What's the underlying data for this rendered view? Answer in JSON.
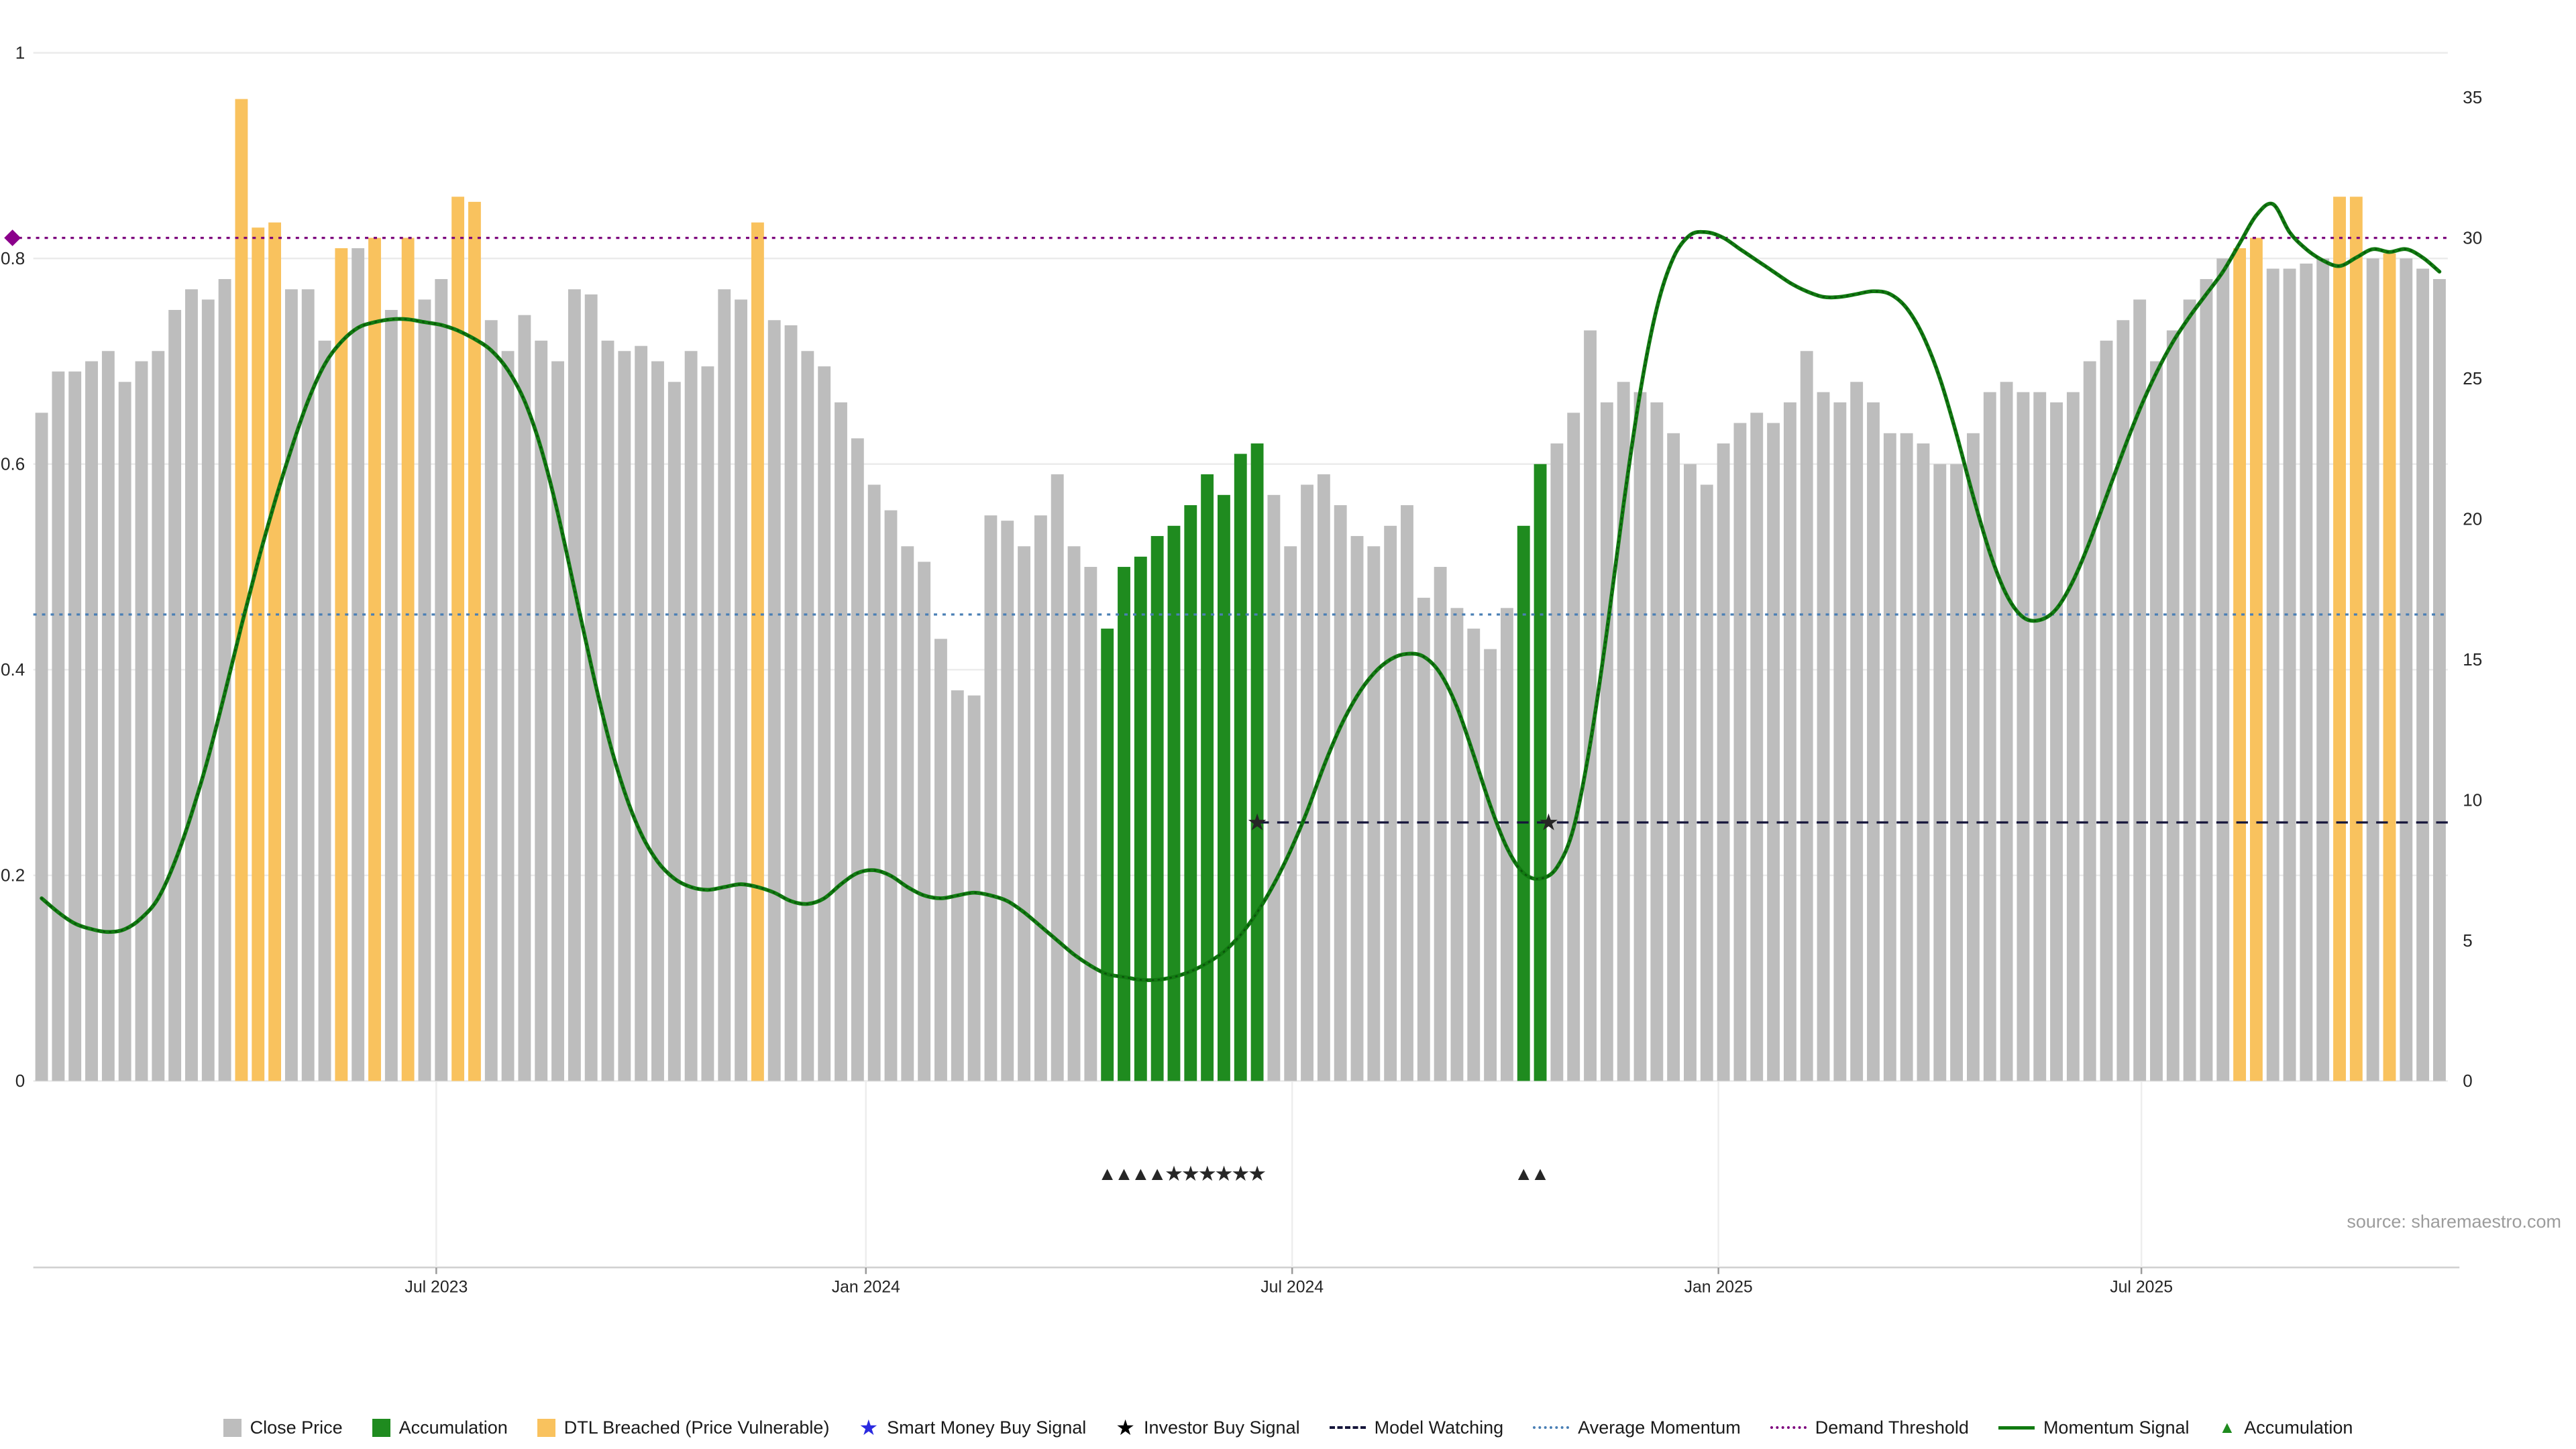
{
  "meta": {
    "source_text": "source: sharemaestro.com"
  },
  "colors": {
    "close_bar": "#bdbdbd",
    "accumulation_bar": "#1f8b1f",
    "dtl_bar": "#f9c25e",
    "momentum_line": "#117a11",
    "momentum_dots": "#0b520b",
    "average_momentum": "#4a7fb5",
    "demand_threshold": "#7d007d",
    "model_watching": "#15153a",
    "smart_money_star": "#2a2ae0",
    "investor_star": "#000000",
    "grid": "#ebebeb",
    "axis_line": "#cfcfcf",
    "tick_text": "#262626"
  },
  "chart_data": {
    "type": "bar+line",
    "title": "",
    "x_ticks": [
      {
        "label": "Jul 2023",
        "index": 23.7
      },
      {
        "label": "Jan 2024",
        "index": 49.5
      },
      {
        "label": "Jul 2024",
        "index": 75.1
      },
      {
        "label": "Jan 2025",
        "index": 100.7
      },
      {
        "label": "Jul 2025",
        "index": 126.1
      }
    ],
    "left_axis": {
      "range": [
        0,
        1
      ],
      "ticks": [
        {
          "v": 0,
          "label": "0"
        },
        {
          "v": 0.2,
          "label": "0.2"
        },
        {
          "v": 0.4,
          "label": "0.4"
        },
        {
          "v": 0.6,
          "label": "0.6"
        },
        {
          "v": 0.8,
          "label": "0.8"
        },
        {
          "v": 1,
          "label": "1"
        }
      ]
    },
    "right_axis": {
      "range": [
        0,
        35
      ],
      "ticks": [
        {
          "v": 0,
          "label": "0"
        },
        {
          "v": 5,
          "label": "5"
        },
        {
          "v": 10,
          "label": "10"
        },
        {
          "v": 15,
          "label": "15"
        },
        {
          "v": 20,
          "label": "20"
        },
        {
          "v": 25,
          "label": "25"
        },
        {
          "v": 30,
          "label": "30"
        },
        {
          "v": 35,
          "label": "35"
        }
      ]
    },
    "series": [
      {
        "name": "Close Price",
        "type": "bar",
        "axis": "left",
        "values": [
          0.65,
          0.69,
          0.69,
          0.7,
          0.71,
          0.68,
          0.7,
          0.71,
          0.75,
          0.77,
          0.76,
          0.78,
          0.955,
          0.83,
          0.835,
          0.77,
          0.77,
          0.72,
          0.81,
          0.81,
          0.82,
          0.75,
          0.82,
          0.76,
          0.78,
          0.86,
          0.855,
          0.74,
          0.71,
          0.745,
          0.72,
          0.7,
          0.77,
          0.765,
          0.72,
          0.71,
          0.715,
          0.7,
          0.68,
          0.71,
          0.695,
          0.77,
          0.76,
          0.835,
          0.74,
          0.735,
          0.71,
          0.695,
          0.66,
          0.625,
          0.58,
          0.555,
          0.52,
          0.505,
          0.43,
          0.38,
          0.375,
          0.55,
          0.545,
          0.52,
          0.55,
          0.59,
          0.52,
          0.5,
          0.44,
          0.5,
          0.51,
          0.53,
          0.54,
          0.56,
          0.59,
          0.57,
          0.61,
          0.62,
          0.57,
          0.52,
          0.58,
          0.59,
          0.56,
          0.53,
          0.52,
          0.54,
          0.56,
          0.47,
          0.5,
          0.46,
          0.44,
          0.42,
          0.46,
          0.54,
          0.6,
          0.62,
          0.65,
          0.73,
          0.66,
          0.68,
          0.67,
          0.66,
          0.63,
          0.6,
          0.58,
          0.62,
          0.64,
          0.65,
          0.64,
          0.66,
          0.71,
          0.67,
          0.66,
          0.68,
          0.66,
          0.63,
          0.63,
          0.62,
          0.6,
          0.6,
          0.63,
          0.67,
          0.68,
          0.67,
          0.67,
          0.66,
          0.67,
          0.7,
          0.72,
          0.74,
          0.76,
          0.7,
          0.73,
          0.76,
          0.78,
          0.8,
          0.81,
          0.82,
          0.79,
          0.79,
          0.795,
          0.8,
          0.86,
          0.86,
          0.8,
          0.805,
          0.8,
          0.79,
          0.78
        ],
        "accumulation_indices": [
          64,
          65,
          66,
          67,
          68,
          69,
          70,
          71,
          72,
          73,
          89,
          90
        ],
        "dtl_breached_indices": [
          12,
          13,
          14,
          18,
          20,
          22,
          25,
          26,
          43,
          132,
          133,
          138,
          139,
          141
        ]
      },
      {
        "name": "Momentum Signal",
        "type": "line",
        "axis": "right",
        "values": [
          6.5,
          6.0,
          5.6,
          5.4,
          5.3,
          5.4,
          5.8,
          6.5,
          7.8,
          9.5,
          11.5,
          13.8,
          16.2,
          18.5,
          20.6,
          22.5,
          24.2,
          25.5,
          26.3,
          26.8,
          27.0,
          27.1,
          27.1,
          27.0,
          26.9,
          26.7,
          26.4,
          26.0,
          25.3,
          24.2,
          22.5,
          20.2,
          17.5,
          14.8,
          12.3,
          10.3,
          8.8,
          7.8,
          7.2,
          6.9,
          6.8,
          6.9,
          7.0,
          6.9,
          6.7,
          6.4,
          6.3,
          6.5,
          7.0,
          7.4,
          7.5,
          7.3,
          6.9,
          6.6,
          6.5,
          6.6,
          6.7,
          6.6,
          6.4,
          6.0,
          5.5,
          5.0,
          4.5,
          4.1,
          3.8,
          3.7,
          3.6,
          3.6,
          3.7,
          3.9,
          4.2,
          4.6,
          5.2,
          6.0,
          7.0,
          8.2,
          9.6,
          11.2,
          12.6,
          13.7,
          14.5,
          15.0,
          15.2,
          15.1,
          14.5,
          13.3,
          11.6,
          9.8,
          8.3,
          7.4,
          7.2,
          7.6,
          9.0,
          12.0,
          16.0,
          20.5,
          24.5,
          27.5,
          29.3,
          30.1,
          30.2,
          30.0,
          29.6,
          29.2,
          28.8,
          28.4,
          28.1,
          27.9,
          27.9,
          28.0,
          28.1,
          28.0,
          27.5,
          26.5,
          25.0,
          23.0,
          20.8,
          18.8,
          17.3,
          16.5,
          16.4,
          16.8,
          17.8,
          19.2,
          20.8,
          22.4,
          23.9,
          25.2,
          26.3,
          27.2,
          28.0,
          28.8,
          29.8,
          30.8,
          31.2,
          30.2,
          29.6,
          29.2,
          29.0,
          29.3,
          29.6,
          29.5,
          29.6,
          29.3,
          28.8
        ]
      }
    ],
    "reference_lines": [
      {
        "name": "Demand Threshold",
        "axis": "right",
        "value": 30,
        "style": "dotted",
        "color": "#7d007d",
        "from": "edge",
        "marker": "diamond"
      },
      {
        "name": "Average Momentum",
        "axis": "right",
        "value": 16.6,
        "style": "dotted",
        "color": "#4a7fb5",
        "from": "plot"
      },
      {
        "name": "Model Watching",
        "axis": "right",
        "value": 9.2,
        "style": "dashed",
        "color": "#15153a",
        "from_index": 73
      }
    ],
    "markers": {
      "smart_money_buy": [
        {
          "index": 73,
          "value": 9.2
        },
        {
          "index": 90.5,
          "value": 9.2
        }
      ],
      "investor_buy_row_indices": [
        68,
        69,
        70,
        71,
        72,
        73
      ],
      "accumulation_row_indices": [
        64,
        65,
        66,
        67,
        89,
        90
      ]
    }
  },
  "legend": {
    "items": [
      {
        "swatch": "square",
        "color": "#bdbdbd",
        "label": "Close Price"
      },
      {
        "swatch": "square",
        "color": "#1f8b1f",
        "label": "Accumulation"
      },
      {
        "swatch": "square",
        "color": "#f9c25e",
        "label": "DTL Breached (Price Vulnerable)"
      },
      {
        "swatch": "star",
        "color": "#2a2ae0",
        "label": "Smart Money Buy Signal"
      },
      {
        "swatch": "star",
        "color": "#000000",
        "label": "Investor Buy Signal"
      },
      {
        "swatch": "dashed-line",
        "color": "#15153a",
        "label": "Model Watching"
      },
      {
        "swatch": "dotted-line",
        "color": "#4a7fb5",
        "label": "Average Momentum"
      },
      {
        "swatch": "dotted-line",
        "color": "#7d007d",
        "label": "Demand Threshold"
      },
      {
        "swatch": "solid-line",
        "color": "#117a11",
        "label": "Momentum Signal"
      },
      {
        "swatch": "triangle",
        "color": "#1f8b1f",
        "label": "Accumulation"
      }
    ]
  }
}
